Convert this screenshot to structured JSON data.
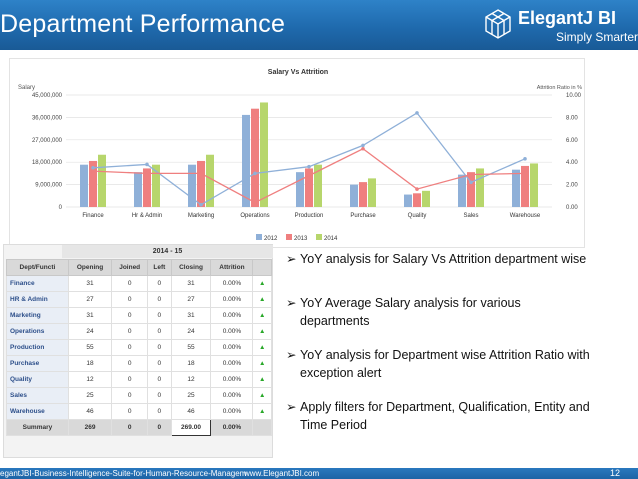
{
  "header": {
    "title": "Department Performance",
    "brand": "ElegantJ BI",
    "tagline": "Simply Smarter!",
    "colors": {
      "header_bg": "#1f6aad",
      "text": "#ffffff"
    },
    "icons": [
      "logo-cube-icon"
    ]
  },
  "chart_data": {
    "type": "bar",
    "title": "Salary Vs Attrition",
    "ylabel": "Salary",
    "y2label": "Attrition Ratio in %",
    "ylim": [
      0,
      45000000
    ],
    "y_ticks": [
      "45,000,000",
      "36,000,000",
      "27,000,000",
      "18,000,000",
      "9,000,000",
      "0"
    ],
    "y2lim": [
      0,
      10
    ],
    "y2_ticks": [
      "10.00",
      "8.00",
      "6.00",
      "4.00",
      "2.00",
      "0.00"
    ],
    "categories": [
      "Finance",
      "Hr & Admin",
      "Marketing",
      "Operations",
      "Production",
      "Purchase",
      "Quality",
      "Sales",
      "Warehouse"
    ],
    "series": [
      {
        "name": "2012",
        "color": "#8fb0d8",
        "values": [
          17000000,
          14000000,
          17000000,
          37000000,
          14000000,
          9000000,
          5000000,
          13000000,
          15000000
        ]
      },
      {
        "name": "2013",
        "color": "#ef7f7f",
        "values": [
          18500000,
          15500000,
          18500000,
          39500000,
          15500000,
          10000000,
          5500000,
          14000000,
          16500000
        ]
      },
      {
        "name": "2014",
        "color": "#b7d66c",
        "values": [
          21000000,
          17000000,
          21000000,
          42000000,
          17000000,
          11500000,
          6500000,
          15500000,
          17500000
        ]
      }
    ],
    "lines": [
      {
        "series": "2012",
        "color": "#8fb0d8",
        "values": [
          3.5,
          3.8,
          0.2,
          3.0,
          3.6,
          5.5,
          8.4,
          2.2,
          4.3
        ]
      },
      {
        "series": "2013",
        "color": "#ef7f7f",
        "values": [
          3.2,
          3.0,
          3.0,
          0.4,
          2.8,
          5.2,
          1.6,
          2.9,
          3.0
        ]
      }
    ],
    "legend": [
      "2012",
      "2013",
      "2014"
    ],
    "legend_position": "bottom",
    "grid": true
  },
  "table": {
    "period": "2014 - 15",
    "headers": [
      "Dept/Functi",
      "Opening",
      "Joined",
      "Left",
      "Closing",
      "Attrition",
      ""
    ],
    "rows": [
      {
        "dept": "Finance",
        "opening": "31",
        "joined": "0",
        "left": "0",
        "closing": "31",
        "attrition": "0.00%",
        "flag": "▲"
      },
      {
        "dept": "HR & Admin",
        "opening": "27",
        "joined": "0",
        "left": "0",
        "closing": "27",
        "attrition": "0.00%",
        "flag": "▲"
      },
      {
        "dept": "Marketing",
        "opening": "31",
        "joined": "0",
        "left": "0",
        "closing": "31",
        "attrition": "0.00%",
        "flag": "▲"
      },
      {
        "dept": "Operations",
        "opening": "24",
        "joined": "0",
        "left": "0",
        "closing": "24",
        "attrition": "0.00%",
        "flag": "▲"
      },
      {
        "dept": "Production",
        "opening": "55",
        "joined": "0",
        "left": "0",
        "closing": "55",
        "attrition": "0.00%",
        "flag": "▲"
      },
      {
        "dept": "Purchase",
        "opening": "18",
        "joined": "0",
        "left": "0",
        "closing": "18",
        "attrition": "0.00%",
        "flag": "▲"
      },
      {
        "dept": "Quality",
        "opening": "12",
        "joined": "0",
        "left": "0",
        "closing": "12",
        "attrition": "0.00%",
        "flag": "▲"
      },
      {
        "dept": "Sales",
        "opening": "25",
        "joined": "0",
        "left": "0",
        "closing": "25",
        "attrition": "0.00%",
        "flag": "▲"
      },
      {
        "dept": "Warehouse",
        "opening": "46",
        "joined": "0",
        "left": "0",
        "closing": "46",
        "attrition": "0.00%",
        "flag": "▲"
      }
    ],
    "summary": {
      "label": "Summary",
      "opening": "269",
      "joined": "0",
      "left": "0",
      "closing": "269.00",
      "attrition": "0.00%"
    }
  },
  "bullets": [
    {
      "mark": "➢",
      "text": "YoY analysis for Salary Vs Attrition department wise"
    },
    {
      "mark": "➢",
      "text": "YoY  Average Salary analysis for various departments"
    },
    {
      "mark": "➢",
      "text": "YoY analysis for Department wise Attrition Ratio with exception alert"
    },
    {
      "mark": "➢",
      "text": "Apply filters for Department, Qualification, Entity and Time Period"
    }
  ],
  "footer": {
    "left": "egantJBI-Business-Intelligence-Suite-for-Human-Resource-Managem",
    "url": "www.ElegantJBI.com",
    "page": "12"
  }
}
